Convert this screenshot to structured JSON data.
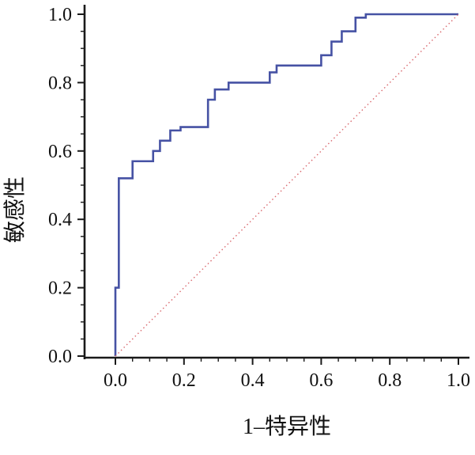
{
  "figure": {
    "background": "#ffffff"
  },
  "chart_data": {
    "type": "line",
    "subtype": "roc-curve",
    "title": "",
    "xlabel": "1–特异性",
    "ylabel": "敏感性",
    "xlim": [
      0,
      1
    ],
    "ylim": [
      0,
      1
    ],
    "x_tick_labels": [
      "0.0",
      "0.2",
      "0.4",
      "0.6",
      "0.8",
      "1.0"
    ],
    "y_tick_labels": [
      "0.0",
      "0.2",
      "0.4",
      "0.6",
      "0.8",
      "1.0"
    ],
    "major_tick_step": 0.2,
    "minor_tick_step": 0.05,
    "grid": false,
    "legend": "none",
    "axis_color": "#1a1a1a",
    "series": [
      {
        "name": "roc-curve",
        "color": "#4652a4",
        "line_style": "solid",
        "line_width": 2.6,
        "points": [
          [
            0.0,
            0.0
          ],
          [
            0.0,
            0.2
          ],
          [
            0.01,
            0.2
          ],
          [
            0.01,
            0.52
          ],
          [
            0.05,
            0.52
          ],
          [
            0.05,
            0.57
          ],
          [
            0.11,
            0.57
          ],
          [
            0.11,
            0.6
          ],
          [
            0.13,
            0.6
          ],
          [
            0.13,
            0.63
          ],
          [
            0.16,
            0.63
          ],
          [
            0.16,
            0.66
          ],
          [
            0.19,
            0.66
          ],
          [
            0.19,
            0.67
          ],
          [
            0.27,
            0.67
          ],
          [
            0.27,
            0.75
          ],
          [
            0.29,
            0.75
          ],
          [
            0.29,
            0.78
          ],
          [
            0.33,
            0.78
          ],
          [
            0.33,
            0.8
          ],
          [
            0.45,
            0.8
          ],
          [
            0.45,
            0.83
          ],
          [
            0.47,
            0.83
          ],
          [
            0.47,
            0.85
          ],
          [
            0.6,
            0.85
          ],
          [
            0.6,
            0.88
          ],
          [
            0.63,
            0.88
          ],
          [
            0.63,
            0.92
          ],
          [
            0.66,
            0.92
          ],
          [
            0.66,
            0.95
          ],
          [
            0.7,
            0.95
          ],
          [
            0.7,
            0.99
          ],
          [
            0.73,
            0.99
          ],
          [
            0.73,
            1.0
          ],
          [
            1.0,
            1.0
          ]
        ]
      },
      {
        "name": "chance-diagonal",
        "color": "#d9696e",
        "line_style": "dotted",
        "line_width": 1.4,
        "points": [
          [
            0.0,
            0.0
          ],
          [
            1.0,
            1.0
          ]
        ]
      }
    ]
  }
}
